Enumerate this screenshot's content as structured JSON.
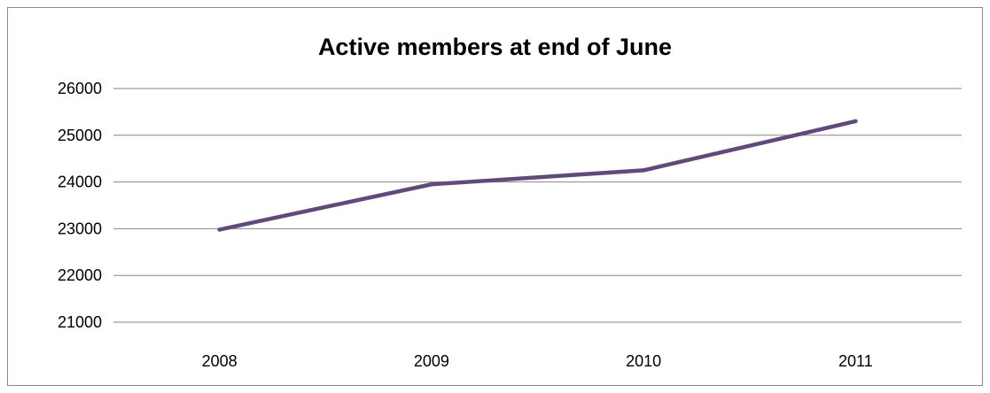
{
  "chart_data": {
    "type": "line",
    "title": "Active members at end of June",
    "xlabel": "",
    "ylabel": "",
    "categories": [
      "2008",
      "2009",
      "2010",
      "2011"
    ],
    "series": [
      {
        "values": [
          22980,
          23950,
          24250,
          25300
        ]
      }
    ],
    "ylim": [
      21000,
      26000
    ],
    "yticks": [
      "21000",
      "22000",
      "23000",
      "24000",
      "25000",
      "26000"
    ],
    "grid": true,
    "legend": "none",
    "line_color": "#604a7b",
    "grid_color": "#868686"
  }
}
